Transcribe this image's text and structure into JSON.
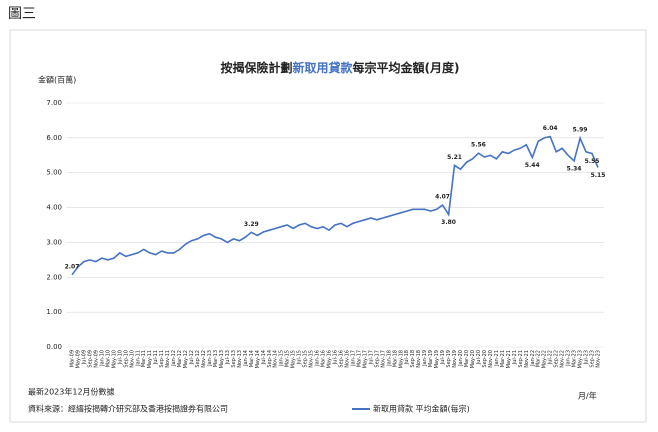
{
  "heading": "圖三",
  "chart_data": {
    "type": "line",
    "title_parts": [
      "按揭保險計劃",
      "新取用貸款",
      "每宗平均金額(月度)"
    ],
    "y_label": "金額(百萬)",
    "x_label": "月/年",
    "categories": [
      "Mar-09",
      "May-09",
      "Jul-09",
      "Sep-09",
      "Nov-09",
      "Jan-10",
      "Mar-10",
      "May-10",
      "Jul-10",
      "Sep-10",
      "Nov-10",
      "Jan-11",
      "Mar-11",
      "May-11",
      "Jul-11",
      "Sep-11",
      "Nov-11",
      "Jan-12",
      "Mar-12",
      "May-12",
      "Jul-12",
      "Sep-12",
      "Nov-12",
      "Jan-13",
      "Mar-13",
      "May-13",
      "Jul-13",
      "Sep-13",
      "Nov-13",
      "Jan-14",
      "Mar-14",
      "May-14",
      "Jul-14",
      "Sep-14",
      "Nov-14",
      "Jan-15",
      "Mar-15",
      "May-15",
      "Jul-15",
      "Sep-15",
      "Nov-15",
      "Jan-16",
      "Mar-16",
      "May-16",
      "Jul-16",
      "Sep-16",
      "Nov-16",
      "Jan-17",
      "Mar-17",
      "May-17",
      "Jul-17",
      "Sep-17",
      "Nov-17",
      "Jan-18",
      "Mar-18",
      "May-18",
      "Jul-18",
      "Sep-18",
      "Nov-18",
      "Jan-19",
      "Mar-19",
      "May-19",
      "Jul-19",
      "Sep-19",
      "Nov-19",
      "Jan-20",
      "Mar-20",
      "May-20",
      "Jul-20",
      "Sep-20",
      "Nov-20",
      "Jan-21",
      "Mar-21",
      "May-21",
      "Jul-21",
      "Sep-21",
      "Nov-21",
      "Jan-22",
      "Mar-22",
      "May-22",
      "Jul-22",
      "Sep-22",
      "Nov-22",
      "Jan-23",
      "Mar-23",
      "May-23",
      "Jul-23",
      "Sep-23",
      "Nov-23"
    ],
    "series": [
      {
        "name": "新取用貸款 平均金額(每宗)",
        "color": "#4472c4",
        "values": [
          2.07,
          2.3,
          2.45,
          2.5,
          2.45,
          2.55,
          2.5,
          2.55,
          2.7,
          2.6,
          2.65,
          2.7,
          2.8,
          2.7,
          2.65,
          2.75,
          2.7,
          2.7,
          2.8,
          2.95,
          3.05,
          3.1,
          3.2,
          3.25,
          3.15,
          3.1,
          3.0,
          3.1,
          3.05,
          3.15,
          3.29,
          3.2,
          3.3,
          3.35,
          3.4,
          3.45,
          3.5,
          3.4,
          3.5,
          3.55,
          3.45,
          3.4,
          3.45,
          3.35,
          3.5,
          3.55,
          3.45,
          3.55,
          3.6,
          3.65,
          3.7,
          3.65,
          3.7,
          3.75,
          3.8,
          3.85,
          3.9,
          3.95,
          3.95,
          3.95,
          3.9,
          3.95,
          4.07,
          3.8,
          5.21,
          5.1,
          5.3,
          5.4,
          5.56,
          5.45,
          5.5,
          5.4,
          5.6,
          5.55,
          5.65,
          5.7,
          5.8,
          5.44,
          5.9,
          6.0,
          6.04,
          5.6,
          5.7,
          5.5,
          5.34,
          5.99,
          5.6,
          5.55,
          5.15
        ],
        "value_labels": [
          "2.07",
          null,
          null,
          null,
          null,
          null,
          null,
          null,
          null,
          null,
          null,
          null,
          null,
          null,
          null,
          null,
          null,
          null,
          null,
          null,
          null,
          null,
          null,
          null,
          null,
          null,
          null,
          null,
          null,
          null,
          "3.29",
          null,
          null,
          null,
          null,
          null,
          null,
          null,
          null,
          null,
          null,
          null,
          null,
          null,
          null,
          null,
          null,
          null,
          null,
          null,
          null,
          null,
          null,
          null,
          null,
          null,
          null,
          null,
          null,
          null,
          null,
          null,
          "4.07",
          "3.80",
          "5.21",
          null,
          null,
          null,
          "5.56",
          null,
          null,
          null,
          null,
          null,
          null,
          null,
          null,
          "5.44",
          null,
          null,
          "6.04",
          null,
          null,
          null,
          "5.34",
          "5.99",
          null,
          "5.55",
          "5.15"
        ]
      }
    ],
    "ylim": [
      0,
      7
    ],
    "yticks": [
      {
        "value": 0,
        "label": "0.00"
      },
      {
        "value": 1,
        "label": "1.00"
      },
      {
        "value": 2,
        "label": "2.00"
      },
      {
        "value": 3,
        "label": "3.00"
      },
      {
        "value": 4,
        "label": "4.00"
      },
      {
        "value": 5,
        "label": "5.00"
      },
      {
        "value": 6,
        "label": "6.00"
      },
      {
        "value": 7,
        "label": "7.00"
      }
    ],
    "grid": true,
    "note": "最新2023年12月份數據",
    "source": "資料來源：經縉按揭轉介研究部及香港按揭證券有限公司"
  }
}
